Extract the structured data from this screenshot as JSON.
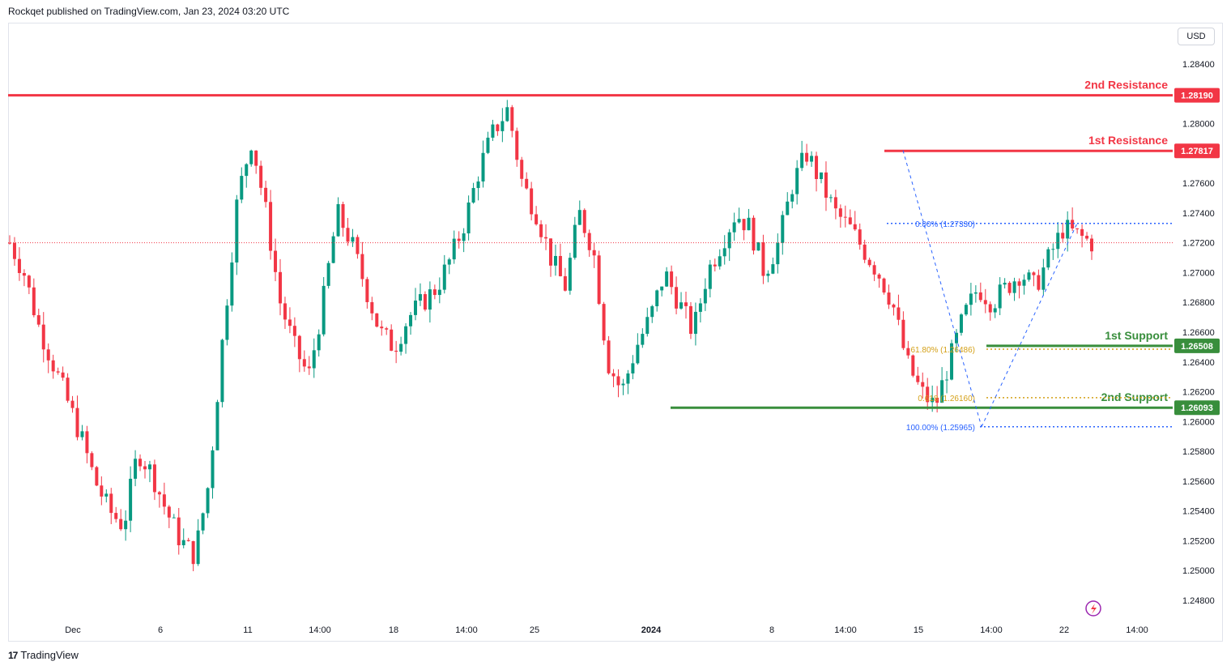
{
  "header": {
    "publish_text": "Rockqet published on TradingView.com, Jan 23, 2024 03:20 UTC"
  },
  "price_scale": {
    "currency": "USD"
  },
  "footer": {
    "brand": "TradingView",
    "logo_glyph": "17"
  },
  "colors": {
    "up": "#089981",
    "down": "#f23645",
    "resistance": "#f23645",
    "support": "#388e3c",
    "fib_blue": "#2962ff",
    "fib_gold": "#d4a017"
  },
  "chart_data": {
    "type": "candlestick",
    "symbol_pair_hint": "",
    "ylim": [
      1.247,
      1.2855
    ],
    "y_ticks": [
      "1.28400",
      "1.28000",
      "1.27600",
      "1.27400",
      "1.27200",
      "1.27000",
      "1.26800",
      "1.26600",
      "1.26400",
      "1.26200",
      "1.26000",
      "1.25800",
      "1.25600",
      "1.25400",
      "1.25200",
      "1.25000",
      "1.24800"
    ],
    "x_ticks": [
      "Dec",
      "6",
      "11",
      "14:00",
      "18",
      "14:00",
      "25",
      "2024",
      "8",
      "14:00",
      "15",
      "14:00",
      "22",
      "14:00"
    ],
    "last_price": 1.272,
    "levels": [
      {
        "name": "2nd Resistance",
        "value": 1.2819,
        "label": "1.28190",
        "kind": "resistance"
      },
      {
        "name": "1st Resistance",
        "value": 1.27817,
        "label": "1.27817",
        "kind": "resistance"
      },
      {
        "name": "1st Support",
        "value": 1.26508,
        "label": "1.26508",
        "kind": "support"
      },
      {
        "name": "2nd Support",
        "value": 1.26093,
        "label": "1.26093",
        "kind": "support"
      }
    ],
    "fib_labels": [
      {
        "text": "0.00% (1.27330)",
        "value": 1.2733,
        "color": "blue"
      },
      {
        "text": "61.80% (1.26486)",
        "value": 1.26486,
        "color": "gold"
      },
      {
        "text": "0.618 (1.26160)",
        "value": 1.2616,
        "color": "gold"
      },
      {
        "text": "100.00% (1.25965)",
        "value": 1.25965,
        "color": "blue"
      }
    ],
    "anchors": [
      1.272,
      1.27,
      1.2665,
      1.264,
      1.2615,
      1.259,
      1.256,
      1.254,
      1.253,
      1.258,
      1.2565,
      1.254,
      1.252,
      1.251,
      1.256,
      1.266,
      1.275,
      1.279,
      1.274,
      1.268,
      1.265,
      1.263,
      1.268,
      1.274,
      1.272,
      1.269,
      1.266,
      1.265,
      1.267,
      1.268,
      1.269,
      1.271,
      1.2735,
      1.277,
      1.2795,
      1.281,
      1.276,
      1.274,
      1.271,
      1.269,
      1.274,
      1.2715,
      1.264,
      1.262,
      1.265,
      1.267,
      1.27,
      1.268,
      1.266,
      1.27,
      1.272,
      1.274,
      1.273,
      1.27,
      1.272,
      1.276,
      1.278,
      1.276,
      1.274,
      1.273,
      1.2715,
      1.27,
      1.268,
      1.264,
      1.262,
      1.261,
      1.264,
      1.267,
      1.269,
      1.268,
      1.269,
      1.27,
      1.269,
      1.271,
      1.273,
      1.2725,
      1.272
    ]
  }
}
